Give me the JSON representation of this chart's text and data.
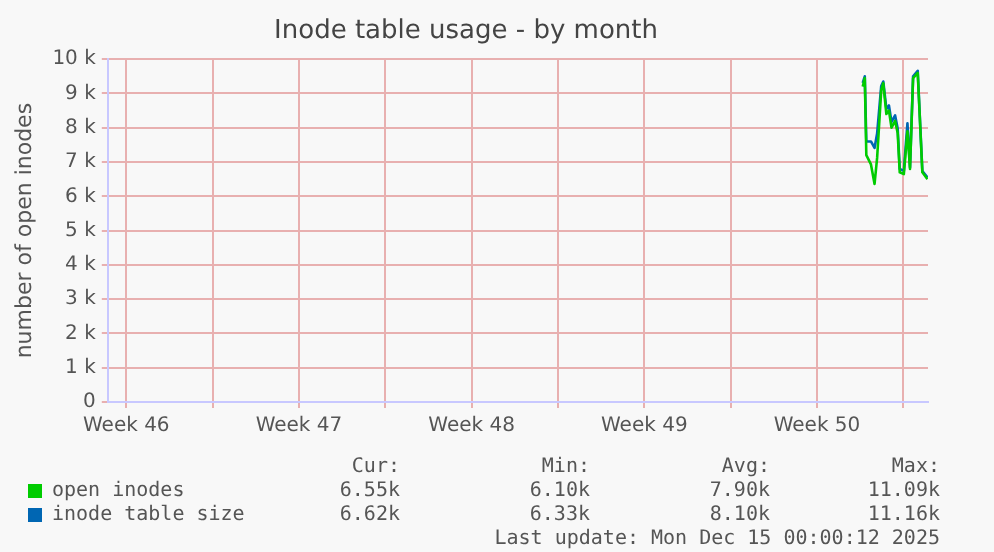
{
  "chart_data": {
    "type": "line",
    "title": "Inode table usage - by month",
    "ylabel": "number of open inodes",
    "xlim": [
      "2025-11-11T18:00",
      "2025-12-15T00:00"
    ],
    "xticks": [
      {
        "value": "2025-11-12T12:00",
        "label": "Week 46"
      },
      {
        "value": "2025-11-16",
        "label": null
      },
      {
        "value": "2025-11-19T12:00",
        "label": "Week 47"
      },
      {
        "value": "2025-11-23",
        "label": null
      },
      {
        "value": "2025-11-26T12:00",
        "label": "Week 48"
      },
      {
        "value": "2025-11-30",
        "label": null
      },
      {
        "value": "2025-12-03T12:00",
        "label": "Week 49"
      },
      {
        "value": "2025-12-07",
        "label": null
      },
      {
        "value": "2025-12-10T12:00",
        "label": "Week 50"
      },
      {
        "value": "2025-12-14",
        "label": null
      }
    ],
    "ylim": [
      0,
      10000
    ],
    "yticks": [
      {
        "value": 0,
        "label": "0"
      },
      {
        "value": 1000,
        "label": "1 k"
      },
      {
        "value": 2000,
        "label": "2 k"
      },
      {
        "value": 3000,
        "label": "3 k"
      },
      {
        "value": 4000,
        "label": "4 k"
      },
      {
        "value": 5000,
        "label": "5 k"
      },
      {
        "value": 6000,
        "label": "6 k"
      },
      {
        "value": 7000,
        "label": "7 k"
      },
      {
        "value": 8000,
        "label": "8 k"
      },
      {
        "value": 9000,
        "label": "9 k"
      },
      {
        "value": 10000,
        "label": "10 k"
      }
    ],
    "x": [
      "2025-12-12T08:30",
      "2025-12-12T10:30",
      "2025-12-12T12:00",
      "2025-12-12T16:30",
      "2025-12-12T20:00",
      "2025-12-12T22:30",
      "2025-12-13T02:30",
      "2025-12-13T04:30",
      "2025-12-13T07:30",
      "2025-12-13T10:00",
      "2025-12-13T12:30",
      "2025-12-13T16:00",
      "2025-12-13T18:30",
      "2025-12-13T20:30",
      "2025-12-14T00:30",
      "2025-12-14T04:00",
      "2025-12-14T06:30",
      "2025-12-14T09:30",
      "2025-12-14T14:00",
      "2025-12-14T18:30",
      "2025-12-14T23:30"
    ],
    "series": [
      {
        "name": "open inodes",
        "color": "#00cc00",
        "values": [
          9200,
          9450,
          7200,
          6930,
          6360,
          7120,
          9100,
          9300,
          8400,
          8500,
          8000,
          8200,
          7850,
          6700,
          6650,
          7900,
          6800,
          9450,
          9600,
          6700,
          6500
        ]
      },
      {
        "name": "inode table size",
        "color": "#0066b3",
        "values": [
          9310,
          9500,
          7600,
          7600,
          7410,
          7830,
          9220,
          9350,
          8550,
          8650,
          8170,
          8360,
          7980,
          6800,
          6740,
          8130,
          6840,
          9500,
          9660,
          6740,
          6550
        ]
      }
    ],
    "grid": true,
    "legend": "bottom",
    "marker": "none",
    "line_style": "solid",
    "annotations": [
      "Cur:",
      "Min:",
      "Avg:",
      "Max:",
      "6.55k",
      "6.10k",
      "7.90k",
      "11.09k",
      "6.62k",
      "6.33k",
      "8.10k",
      "11.16k",
      "Last update: Mon Dec 15 00:00:12 2025"
    ]
  }
}
